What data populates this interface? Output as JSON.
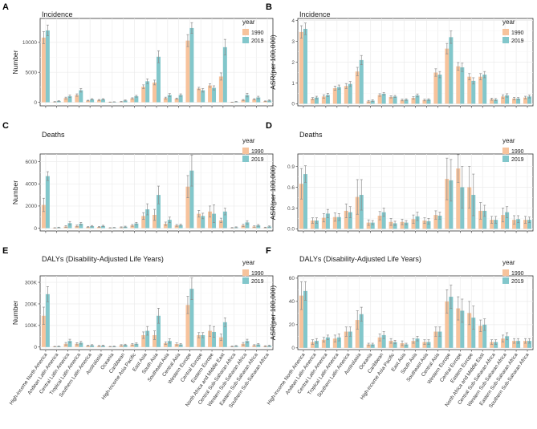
{
  "figure": {
    "regions": [
      "High-income North America",
      "Andean Latin America",
      "Central Latin America",
      "Tropical Latin America",
      "Southern Latin America",
      "Australasia",
      "Oceania",
      "Caribbean",
      "High-income Asia Pacific",
      "East Asia",
      "South Asia",
      "Southeast Asia",
      "Central Asia",
      "Western Europe",
      "Central Europe",
      "Eastern Europe",
      "North Africa and Middle East",
      "Central Sub-Saharan Africa",
      "Western Sub-Saharan Africa",
      "Eastern Sub-Saharan Africa",
      "Southern Sub-Saharan Africa"
    ],
    "colors": {
      "y1990": "#F7C39C",
      "y2019": "#82C7CB",
      "error": "#8C8C8C"
    },
    "legend": {
      "title": "year",
      "items": [
        "1990",
        "2019"
      ]
    }
  },
  "chart_data": [
    {
      "type": "bar",
      "panel": "A",
      "title": "Incidence",
      "ylabel": "Number",
      "ylim": [
        -600,
        14000
      ],
      "yticks": [
        0,
        5000,
        10000
      ],
      "ytick_labels": [
        "0",
        "5000",
        "10000"
      ],
      "series": [
        {
          "name": "1990",
          "values": [
            10800,
            80,
            700,
            1200,
            280,
            380,
            30,
            100,
            650,
            2600,
            3300,
            700,
            600,
            10300,
            2300,
            2800,
            4300,
            20,
            380,
            500,
            180
          ],
          "errors": [
            1000,
            40,
            150,
            200,
            60,
            80,
            15,
            40,
            100,
            300,
            400,
            150,
            100,
            1000,
            200,
            300,
            600,
            10,
            80,
            100,
            40
          ]
        },
        {
          "name": "2019",
          "values": [
            12000,
            200,
            1000,
            2000,
            500,
            500,
            60,
            300,
            1000,
            3500,
            7600,
            1200,
            1200,
            12400,
            2000,
            2400,
            9200,
            100,
            1200,
            800,
            300
          ],
          "errors": [
            900,
            60,
            200,
            300,
            100,
            100,
            20,
            80,
            150,
            400,
            1000,
            250,
            200,
            900,
            300,
            350,
            1300,
            40,
            300,
            200,
            80
          ]
        }
      ]
    },
    {
      "type": "bar",
      "panel": "B",
      "title": "Incidence",
      "ylabel": "ASR(per 100,000)",
      "ylim": [
        -0.1,
        4.1
      ],
      "yticks": [
        0,
        1,
        2,
        3,
        4
      ],
      "ytick_labels": [
        "0",
        "1",
        "2",
        "3",
        "4"
      ],
      "series": [
        {
          "name": "1990",
          "values": [
            3.45,
            0.25,
            0.35,
            0.75,
            0.85,
            1.55,
            0.12,
            0.42,
            0.33,
            0.18,
            0.28,
            0.18,
            1.5,
            2.65,
            1.8,
            1.3,
            1.3,
            0.22,
            0.35,
            0.25,
            0.3
          ],
          "errors": [
            0.3,
            0.05,
            0.08,
            0.1,
            0.12,
            0.2,
            0.04,
            0.06,
            0.05,
            0.04,
            0.06,
            0.04,
            0.18,
            0.25,
            0.18,
            0.15,
            0.15,
            0.05,
            0.08,
            0.06,
            0.06
          ]
        },
        {
          "name": "2019",
          "values": [
            3.6,
            0.3,
            0.42,
            0.8,
            0.95,
            2.1,
            0.15,
            0.48,
            0.35,
            0.2,
            0.4,
            0.2,
            1.4,
            3.2,
            1.75,
            1.1,
            1.4,
            0.2,
            0.4,
            0.25,
            0.35
          ],
          "errors": [
            0.28,
            0.06,
            0.08,
            0.1,
            0.12,
            0.22,
            0.04,
            0.06,
            0.05,
            0.04,
            0.07,
            0.04,
            0.15,
            0.3,
            0.2,
            0.15,
            0.15,
            0.05,
            0.08,
            0.05,
            0.07
          ]
        }
      ]
    },
    {
      "type": "bar",
      "panel": "C",
      "title": "Deaths",
      "ylabel": "Number",
      "ylim": [
        -250,
        6700
      ],
      "yticks": [
        0,
        2000,
        4000,
        6000
      ],
      "ytick_labels": [
        "0",
        "2000",
        "4000",
        "6000"
      ],
      "series": [
        {
          "name": "1990",
          "values": [
            2100,
            30,
            150,
            200,
            100,
            110,
            30,
            80,
            250,
            1100,
            1200,
            400,
            250,
            3750,
            1300,
            1500,
            700,
            40,
            250,
            150,
            60
          ],
          "errors": [
            600,
            15,
            80,
            80,
            40,
            40,
            15,
            40,
            80,
            300,
            500,
            150,
            80,
            1000,
            300,
            500,
            200,
            20,
            100,
            60,
            30
          ]
        },
        {
          "name": "2019",
          "values": [
            4700,
            60,
            450,
            400,
            180,
            200,
            50,
            130,
            420,
            1700,
            3000,
            750,
            280,
            5200,
            1100,
            1300,
            1500,
            80,
            520,
            250,
            150
          ],
          "errors": [
            400,
            30,
            150,
            120,
            60,
            60,
            20,
            50,
            100,
            500,
            800,
            250,
            80,
            1400,
            250,
            800,
            300,
            40,
            150,
            80,
            50
          ]
        }
      ]
    },
    {
      "type": "bar",
      "panel": "D",
      "title": "Deaths",
      "ylabel": "ASR(per 100,000)",
      "ylim": [
        -0.03,
        1.08
      ],
      "yticks": [
        0,
        0.3,
        0.6,
        0.9
      ],
      "ytick_labels": [
        "0.0",
        "0.3",
        "0.6",
        "0.9"
      ],
      "series": [
        {
          "name": "1990",
          "values": [
            0.65,
            0.12,
            0.16,
            0.17,
            0.26,
            0.46,
            0.09,
            0.19,
            0.1,
            0.1,
            0.14,
            0.12,
            0.2,
            0.72,
            0.87,
            0.6,
            0.26,
            0.13,
            0.2,
            0.13,
            0.13
          ],
          "errors": [
            0.22,
            0.04,
            0.06,
            0.06,
            0.1,
            0.25,
            0.04,
            0.06,
            0.05,
            0.04,
            0.06,
            0.04,
            0.06,
            0.3,
            0.2,
            0.3,
            0.12,
            0.05,
            0.1,
            0.06,
            0.05
          ]
        },
        {
          "name": "2019",
          "values": [
            0.79,
            0.12,
            0.22,
            0.17,
            0.24,
            0.49,
            0.09,
            0.24,
            0.08,
            0.09,
            0.18,
            0.11,
            0.19,
            0.7,
            0.6,
            0.49,
            0.26,
            0.13,
            0.24,
            0.14,
            0.13
          ],
          "errors": [
            0.12,
            0.04,
            0.06,
            0.05,
            0.08,
            0.22,
            0.03,
            0.06,
            0.03,
            0.03,
            0.06,
            0.04,
            0.05,
            0.3,
            0.3,
            0.3,
            0.08,
            0.05,
            0.08,
            0.05,
            0.04
          ]
        }
      ]
    },
    {
      "type": "bar",
      "panel": "E",
      "title": "DALYs (Disability-Adjusted Life Years)",
      "ylabel": "Number",
      "ylim": [
        -12000,
        330000
      ],
      "yticks": [
        0,
        100000,
        200000,
        300000
      ],
      "ytick_labels": [
        "0",
        "100K",
        "200K",
        "300K"
      ],
      "series": [
        {
          "name": "1990",
          "values": [
            145000,
            2000,
            15000,
            15000,
            6000,
            5000,
            2000,
            8000,
            12000,
            55000,
            55000,
            18000,
            14000,
            195000,
            55000,
            75000,
            45000,
            3000,
            15000,
            8000,
            4000
          ],
          "errors": [
            40000,
            1000,
            6000,
            5000,
            2000,
            2000,
            1000,
            3000,
            4000,
            15000,
            20000,
            6000,
            5000,
            40000,
            12000,
            25000,
            15000,
            1500,
            6000,
            3000,
            2000
          ]
        },
        {
          "name": "2019",
          "values": [
            245000,
            3000,
            28000,
            20000,
            8000,
            6000,
            3000,
            10000,
            15000,
            75000,
            145000,
            28000,
            12000,
            270000,
            55000,
            70000,
            115000,
            5000,
            28000,
            12000,
            6000
          ],
          "errors": [
            35000,
            1500,
            8000,
            6000,
            3000,
            2500,
            1500,
            3000,
            4000,
            20000,
            35000,
            10000,
            4000,
            50000,
            12000,
            25000,
            20000,
            2000,
            8000,
            4000,
            2500
          ]
        }
      ]
    },
    {
      "type": "bar",
      "panel": "F",
      "title": "DALYs (Disability-Adjusted Life Years)",
      "ylabel": "ASR(per 100,000)",
      "ylim": [
        -1.5,
        62
      ],
      "yticks": [
        0,
        20,
        40,
        60
      ],
      "ytick_labels": [
        "0",
        "20",
        "40",
        "60"
      ],
      "series": [
        {
          "name": "1990",
          "values": [
            45,
            5,
            7,
            8,
            14,
            24,
            3,
            9,
            6,
            4,
            6,
            5,
            14,
            40,
            34,
            30,
            19,
            5,
            8,
            6,
            6
          ],
          "errors": [
            12,
            2,
            2,
            3,
            4,
            8,
            1,
            3,
            2,
            2,
            2,
            2,
            4,
            10,
            10,
            10,
            5,
            2,
            3,
            2,
            2
          ]
        },
        {
          "name": "2019",
          "values": [
            49,
            6,
            9,
            9,
            14,
            29,
            3,
            11,
            5,
            3,
            8,
            5,
            14,
            44,
            32,
            26,
            20,
            5,
            10,
            6,
            6
          ],
          "errors": [
            8,
            2,
            2,
            3,
            4,
            6,
            1,
            3,
            1.5,
            1,
            2,
            2,
            4,
            10,
            10,
            10,
            5,
            2,
            3,
            2,
            2
          ]
        }
      ]
    }
  ]
}
